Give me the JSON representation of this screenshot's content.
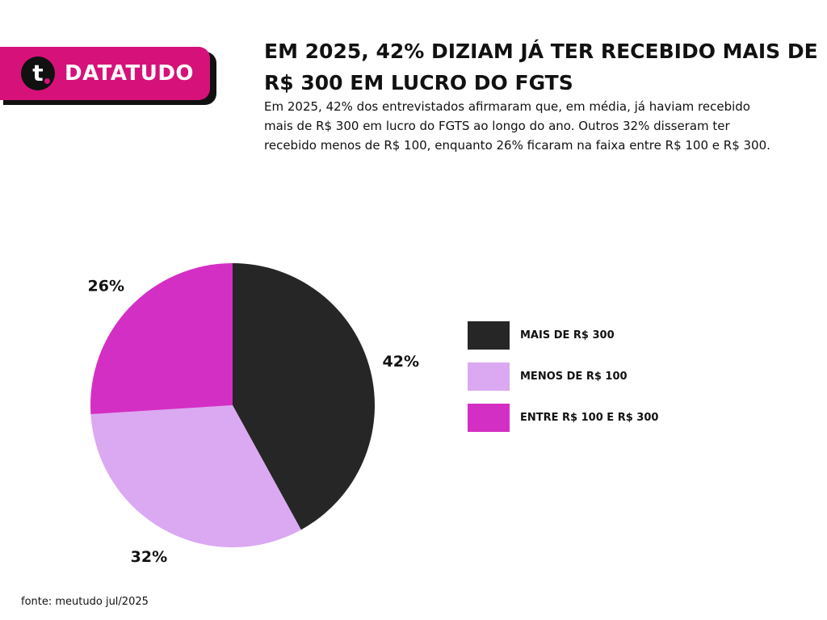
{
  "brand": {
    "logo_letter": "t",
    "name": "DATATUDO",
    "accent": "#d6127a"
  },
  "chart_data": {
    "type": "pie",
    "title": "EM 2025, 42% DIZIAM JÁ TER RECEBIDO MAIS DE R$ 300 EM LUCRO DO FGTS",
    "subtitle": "Em 2025, 42% dos entrevistados afirmaram que, em média, já haviam recebido mais de R$ 300 em lucro do FGTS ao longo do ano. Outros 32% disseram ter recebido menos de R$ 100, enquanto 26% ficaram na faixa entre R$ 100 e R$ 300.",
    "slices": [
      {
        "label": "MAIS DE R$ 300",
        "value": 42,
        "display": "42%",
        "color": "#262626"
      },
      {
        "label": "MENOS DE R$ 100",
        "value": 32,
        "display": "32%",
        "color": "#dba9f2"
      },
      {
        "label": "ENTRE R$ 100 E R$ 300",
        "value": 26,
        "display": "26%",
        "color": "#d42fc4"
      }
    ],
    "start_angle_deg": 0,
    "direction": "clockwise",
    "legend_position": "right",
    "source": "fonte: meutudo jul/2025"
  }
}
